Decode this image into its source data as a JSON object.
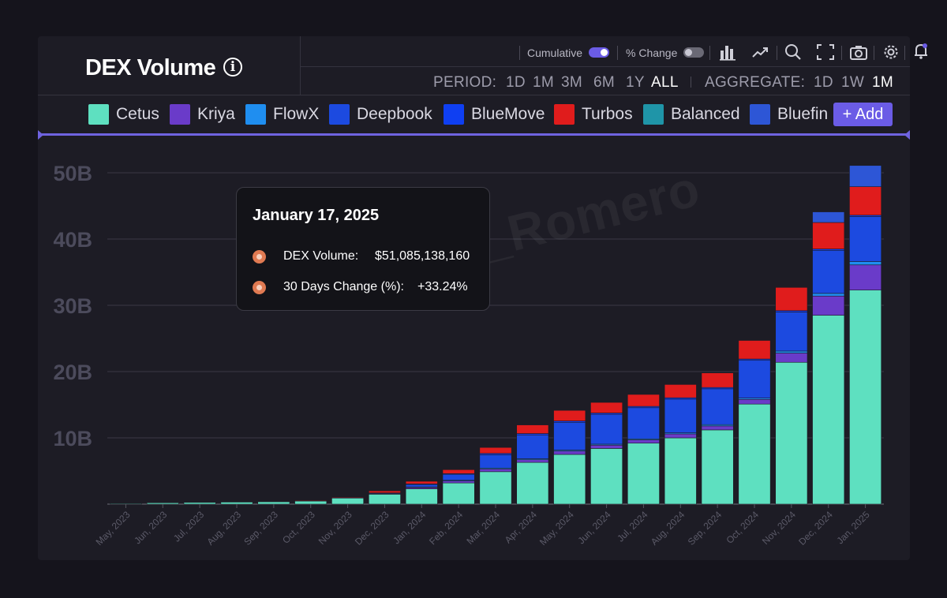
{
  "title": "DEX Volume",
  "info_icon": "info-circle-icon",
  "toolbar": {
    "cumulative_label": "Cumulative",
    "cumulative_on": true,
    "pct_change_label": "% Change",
    "pct_change_on": false,
    "icons": [
      "bar-chart-icon",
      "line-chart-icon",
      "zoom-icon",
      "fullscreen-icon",
      "camera-icon",
      "settings-icon",
      "bell-icon"
    ]
  },
  "period": {
    "label": "PERIOD:",
    "options": [
      "1D",
      "1M",
      "3M",
      "6M",
      "1Y",
      "ALL"
    ],
    "selected": "ALL"
  },
  "aggregate": {
    "label": "AGGREGATE:",
    "options": [
      "1D",
      "1W",
      "1M"
    ],
    "selected": "1M"
  },
  "legend": [
    {
      "name": "Cetus",
      "color": "#5ee0c0"
    },
    {
      "name": "Kriya",
      "color": "#6a3bc9"
    },
    {
      "name": "FlowX",
      "color": "#1f8ef0"
    },
    {
      "name": "Deepbook",
      "color": "#1c4ae0"
    },
    {
      "name": "BlueMove",
      "color": "#0f3ff2"
    },
    {
      "name": "Turbos",
      "color": "#e01c1c"
    },
    {
      "name": "Balanced",
      "color": "#1f95a8"
    },
    {
      "name": "Bluefin",
      "color": "#2d56d6"
    }
  ],
  "add_label": "+ Add",
  "tooltip": {
    "date": "January 17, 2025",
    "rows": [
      {
        "label": "DEX Volume:",
        "value": "$51,085,138,160"
      },
      {
        "label": "30 Days Change (%):",
        "value": "+33.24%"
      }
    ]
  },
  "watermark": "XTorero_Romero",
  "chart_data": {
    "type": "bar",
    "stacked": true,
    "categories": [
      "May, 2023",
      "Jun, 2023",
      "Jul, 2023",
      "Aug, 2023",
      "Sep, 2023",
      "Oct, 2023",
      "Nov, 2023",
      "Dec, 2023",
      "Jan, 2024",
      "Feb, 2024",
      "Mar, 2024",
      "Apr, 2024",
      "May, 2024",
      "Jun, 2024",
      "Jul, 2024",
      "Aug, 2024",
      "Sep, 2024",
      "Oct, 2024",
      "Nov, 2024",
      "Dec, 2024",
      "Jan, 2025"
    ],
    "y_ticks": [
      "10B",
      "20B",
      "30B",
      "40B",
      "50B"
    ],
    "y_tick_values": [
      10,
      20,
      30,
      40,
      50
    ],
    "ylim": [
      0,
      52
    ],
    "y_unit": "B",
    "grid": true,
    "series": [
      {
        "name": "Cetus",
        "color": "#5ee0c0",
        "values": [
          0.1,
          0.2,
          0.25,
          0.3,
          0.35,
          0.5,
          0.95,
          1.5,
          2.3,
          3.2,
          4.9,
          6.3,
          7.5,
          8.4,
          9.2,
          10.0,
          11.2,
          15.1,
          21.4,
          28.5,
          32.3
        ]
      },
      {
        "name": "Kriya",
        "color": "#6a3bc9",
        "values": [
          0,
          0,
          0,
          0,
          0,
          0.05,
          0.05,
          0.1,
          0.2,
          0.3,
          0.4,
          0.4,
          0.5,
          0.5,
          0.5,
          0.6,
          0.6,
          0.7,
          1.4,
          2.9,
          3.8
        ]
      },
      {
        "name": "FlowX",
        "color": "#1f8ef0",
        "values": [
          0,
          0,
          0,
          0,
          0,
          0,
          0,
          0.05,
          0.1,
          0.1,
          0.15,
          0.15,
          0.15,
          0.15,
          0.15,
          0.15,
          0.2,
          0.2,
          0.3,
          0.4,
          0.5
        ]
      },
      {
        "name": "Deepbook",
        "color": "#1c4ae0",
        "values": [
          0,
          0,
          0,
          0,
          0,
          0,
          0,
          0.05,
          0.4,
          0.9,
          2.0,
          3.6,
          4.2,
          4.5,
          4.7,
          5.1,
          5.4,
          5.7,
          5.9,
          6.5,
          6.8
        ]
      },
      {
        "name": "BlueMove",
        "color": "#0f3ff2",
        "values": [
          0,
          0,
          0,
          0,
          0,
          0,
          0,
          0,
          0.05,
          0.1,
          0.2,
          0.2,
          0.2,
          0.2,
          0.2,
          0.2,
          0.2,
          0.2,
          0.2,
          0.2,
          0.2
        ]
      },
      {
        "name": "Turbos",
        "color": "#e01c1c",
        "values": [
          0,
          0,
          0,
          0,
          0,
          0.05,
          0.1,
          0.3,
          0.4,
          0.6,
          0.9,
          1.3,
          1.6,
          1.6,
          1.8,
          2.0,
          2.2,
          2.8,
          3.5,
          4.0,
          4.3
        ]
      },
      {
        "name": "Balanced",
        "color": "#1f95a8",
        "values": [
          0,
          0,
          0,
          0,
          0,
          0,
          0,
          0,
          0,
          0,
          0,
          0,
          0,
          0,
          0,
          0,
          0,
          0,
          0,
          0,
          0
        ]
      },
      {
        "name": "Bluefin",
        "color": "#2d56d6",
        "values": [
          0,
          0,
          0,
          0,
          0,
          0,
          0,
          0,
          0,
          0,
          0,
          0,
          0,
          0,
          0,
          0,
          0,
          0,
          0,
          1.6,
          3.2
        ]
      }
    ]
  }
}
